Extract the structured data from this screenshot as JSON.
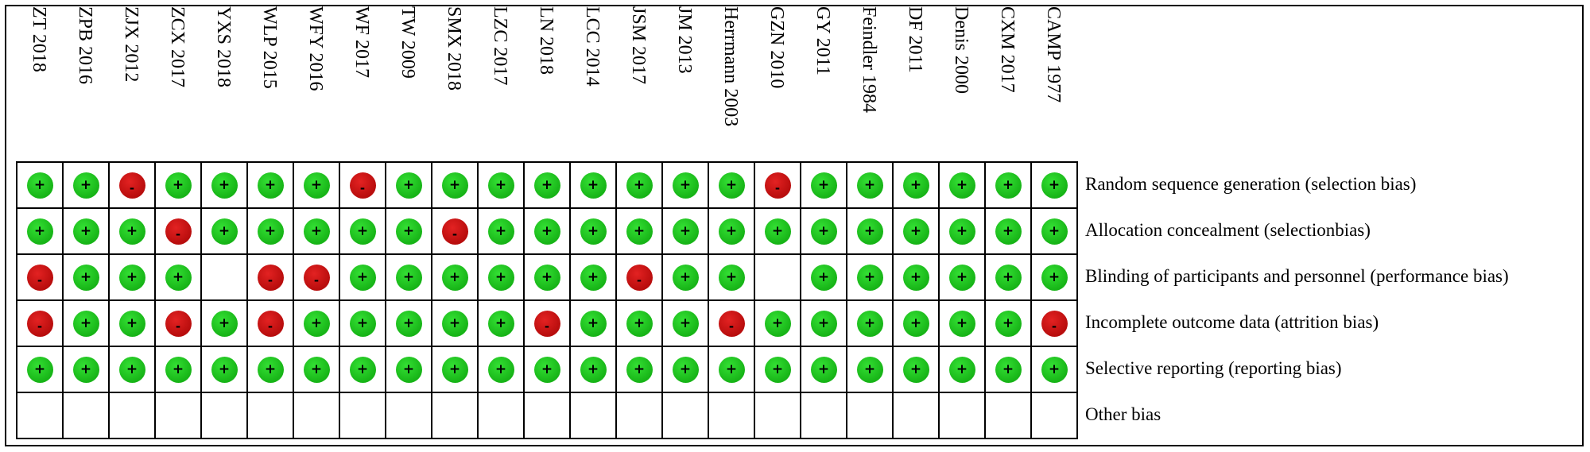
{
  "studies": [
    "ZT 2018",
    "ZPB 2016",
    "ZJX 2012",
    "ZCX 2017",
    "YXS 2018",
    "WLP 2015",
    "WFY 2016",
    "WF 2017",
    "TW 2009",
    "SMX 2018",
    "LZC 2017",
    "LN 2018",
    "LCC 2014",
    "JSM 2017",
    "JM 2013",
    "Herrmann 2003",
    "GZN 2010",
    "GY 2011",
    "Feindler 1984",
    "DF 2011",
    "Denis 2000",
    "CXM 2017",
    "CAMP 1977"
  ],
  "domains": [
    "Random sequence generation (selection bias)",
    "Allocation concealment (selectionbias)",
    "Blinding of participants and personnel (performance bias)",
    "Incomplete outcome data (attrition bias)",
    "Selective reporting (reporting bias)",
    "Other bias"
  ],
  "symbols": {
    "low": "+",
    "high": "-"
  },
  "colors": {
    "low": "#1fc41f",
    "high": "#cc1111"
  },
  "judgements": [
    [
      "low",
      "low",
      "high",
      "low",
      "low",
      "low",
      "low",
      "high",
      "low",
      "low",
      "low",
      "low",
      "low",
      "low",
      "low",
      "low",
      "high",
      "low",
      "low",
      "low",
      "low",
      "low",
      "low"
    ],
    [
      "low",
      "low",
      "low",
      "high",
      "low",
      "low",
      "low",
      "low",
      "low",
      "high",
      "low",
      "low",
      "low",
      "low",
      "low",
      "low",
      "low",
      "low",
      "low",
      "low",
      "low",
      "low",
      "low"
    ],
    [
      "high",
      "low",
      "low",
      "low",
      "",
      "high",
      "high",
      "low",
      "low",
      "low",
      "low",
      "low",
      "low",
      "high",
      "low",
      "low",
      "",
      "low",
      "low",
      "low",
      "low",
      "low",
      "low"
    ],
    [
      "high",
      "low",
      "low",
      "high",
      "low",
      "high",
      "low",
      "low",
      "low",
      "low",
      "low",
      "high",
      "low",
      "low",
      "low",
      "high",
      "low",
      "low",
      "low",
      "low",
      "low",
      "low",
      "high"
    ],
    [
      "low",
      "low",
      "low",
      "low",
      "low",
      "low",
      "low",
      "low",
      "low",
      "low",
      "low",
      "low",
      "low",
      "low",
      "low",
      "low",
      "low",
      "low",
      "low",
      "low",
      "low",
      "low",
      "low"
    ],
    [
      "",
      "",
      "",
      "",
      "",
      "",
      "",
      "",
      "",
      "",
      "",
      "",
      "",
      "",
      "",
      "",
      "",
      "",
      "",
      "",
      "",
      "",
      ""
    ]
  ]
}
